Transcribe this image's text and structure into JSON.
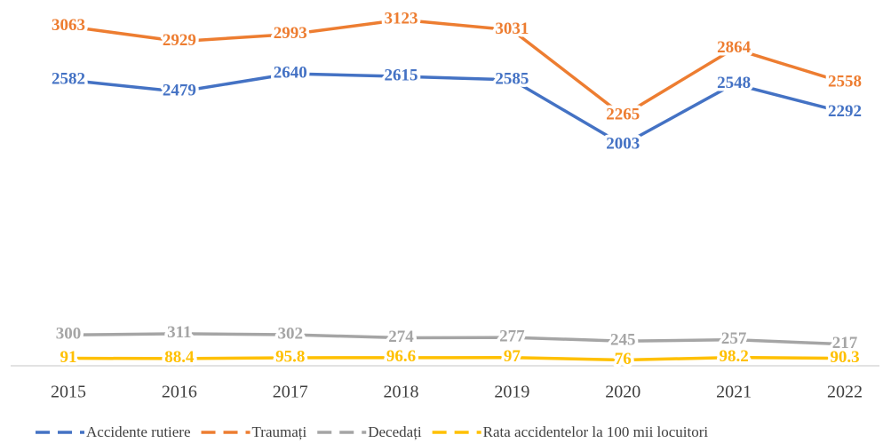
{
  "chart_data": {
    "type": "line",
    "categories": [
      "2015",
      "2016",
      "2017",
      "2018",
      "2019",
      "2020",
      "2021",
      "2022"
    ],
    "series": [
      {
        "name": "Accidente rutiere",
        "color": "#4472c4",
        "values": [
          2582,
          2479,
          2640,
          2615,
          2585,
          2003,
          2548,
          2292
        ]
      },
      {
        "name": "Traumați",
        "color": "#ed7d31",
        "values": [
          3063,
          2929,
          2993,
          3123,
          3031,
          2265,
          2864,
          2558
        ]
      },
      {
        "name": "Decedați",
        "color": "#a5a5a5",
        "values": [
          300,
          311,
          302,
          274,
          277,
          245,
          257,
          217
        ]
      },
      {
        "name": "Rata accidentelor la 100 mii locuitori",
        "color": "#ffc000",
        "values": [
          91,
          88.4,
          95.8,
          96.6,
          97,
          76,
          98.2,
          90.3
        ]
      }
    ],
    "ylim": [
      0,
      3300
    ],
    "legend": "bottom"
  }
}
